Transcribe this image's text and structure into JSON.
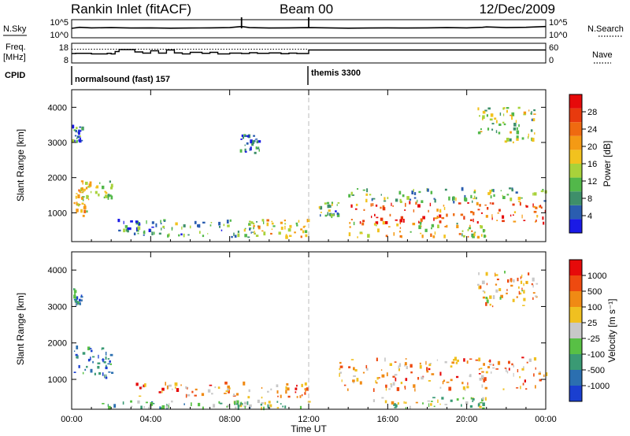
{
  "header": {
    "station": "Rankin Inlet (fitACF)",
    "beam": "Beam 00",
    "date": "12/Dec/2009"
  },
  "chart_data": [
    {
      "type": "line",
      "panel": "nsky-nsearch",
      "left_label": "N.Sky",
      "left_ticks": [
        "10^5",
        "10^0"
      ],
      "right_label": "N.Search",
      "right_ticks": [
        "10^5",
        "10^0"
      ],
      "series": [
        {
          "style": "solid",
          "x_hours": [
            0,
            0.4,
            1,
            2,
            3,
            4,
            5,
            6,
            7,
            8,
            8.6,
            9,
            10,
            11,
            12,
            13,
            14,
            15,
            16,
            17,
            18,
            19,
            20,
            20.8,
            21,
            22,
            23,
            24
          ],
          "y_norm": [
            0.52,
            0.58,
            0.55,
            0.56,
            0.54,
            0.55,
            0.53,
            0.54,
            0.55,
            0.56,
            0.62,
            0.56,
            0.54,
            0.55,
            0.56,
            0.55,
            0.53,
            0.54,
            0.55,
            0.54,
            0.55,
            0.56,
            0.55,
            0.58,
            0.6,
            0.56,
            0.58,
            0.62
          ]
        }
      ],
      "spikes_hours": [
        8.6,
        12.0
      ],
      "xlim": [
        0,
        24
      ]
    },
    {
      "type": "line",
      "panel": "freq-nave",
      "left_label": "Freq.",
      "left_unit": "[MHz]",
      "left_ticks": [
        "18",
        "8"
      ],
      "right_label": "Nave",
      "right_ticks": [
        "60",
        "0"
      ],
      "ylim_left": [
        8,
        18
      ],
      "series": [
        {
          "name_visible": false,
          "style": "solid",
          "step_x_hours": [
            0,
            0.2,
            1.0,
            1.8,
            2.0,
            2.2,
            2.4,
            3.2,
            3.6,
            4.0,
            4.4,
            4.8,
            5.2,
            5.6,
            6.0,
            6.6,
            7.0,
            7.4,
            8.0,
            8.6,
            9.0,
            9.4,
            10.0,
            10.6,
            11.0,
            11.4,
            12.0,
            24
          ],
          "step_freq_mhz": [
            12.8,
            12.9,
            12.6,
            12.9,
            12.6,
            13.8,
            14.8,
            13.6,
            13.0,
            14.2,
            13.0,
            14.6,
            13.1,
            12.6,
            13.4,
            12.9,
            13.4,
            12.6,
            13.0,
            12.8,
            13.2,
            12.9,
            13.1,
            12.7,
            13.0,
            12.8,
            14.6,
            14.6
          ]
        }
      ],
      "dotted_level_mhz": 15.0,
      "xlim": [
        0,
        24
      ]
    },
    {
      "type": "table",
      "panel": "cpid",
      "label": "CPID",
      "modes": [
        {
          "name": "normalsound (fast) 157",
          "start_hours": 0
        },
        {
          "name": "themis 3300",
          "start_hours": 12
        }
      ]
    },
    {
      "type": "heatmap",
      "panel": "power",
      "ylabel": "Slant Range [km]",
      "y_ticks": [
        1000,
        2000,
        3000,
        4000
      ],
      "ylim": [
        180,
        4500
      ],
      "xlim": [
        0,
        24
      ],
      "x_ticks": [
        "00:00",
        "04:00",
        "08:00",
        "12:00",
        "16:00",
        "20:00",
        "00:00"
      ],
      "x_tick_hours": [
        0,
        4,
        8,
        12,
        16,
        20,
        24
      ],
      "colorbar": {
        "label": "Power [dB]",
        "ticks": [
          "4",
          "8",
          "12",
          "16",
          "20",
          "24",
          "28"
        ],
        "colors": [
          "#1a1ae6",
          "#2a5db0",
          "#3e8f6a",
          "#52b84a",
          "#a8d23a",
          "#f2c21e",
          "#f49a14",
          "#ef6a10",
          "#e83a0e",
          "#e60a0a"
        ]
      },
      "echo_regions": [
        {
          "t0": 0.0,
          "t1": 0.9,
          "r0": 900,
          "r1": 1700,
          "level": 0.55
        },
        {
          "t0": 0.4,
          "t1": 2.0,
          "r0": 1300,
          "r1": 1900,
          "level": 0.5
        },
        {
          "t0": 0.0,
          "t1": 0.5,
          "r0": 3000,
          "r1": 3500,
          "level": 0.2
        },
        {
          "t0": 2.3,
          "t1": 4.5,
          "r0": 350,
          "r1": 800,
          "level": 0.2
        },
        {
          "t0": 4.5,
          "t1": 9.5,
          "r0": 300,
          "r1": 800,
          "level": 0.3
        },
        {
          "t0": 9.0,
          "t1": 12.0,
          "r0": 300,
          "r1": 800,
          "level": 0.55
        },
        {
          "t0": 12.5,
          "t1": 13.5,
          "r0": 900,
          "r1": 1300,
          "level": 0.3
        },
        {
          "t0": 14.0,
          "t1": 24.0,
          "r0": 700,
          "r1": 1300,
          "level": 0.8
        },
        {
          "t0": 14.0,
          "t1": 24.0,
          "r0": 1300,
          "r1": 1700,
          "level": 0.35
        },
        {
          "t0": 14.0,
          "t1": 21.0,
          "r0": 300,
          "r1": 700,
          "level": 0.5
        },
        {
          "t0": 20.5,
          "t1": 23.5,
          "r0": 3000,
          "r1": 4000,
          "level": 0.4
        },
        {
          "t0": 8.5,
          "t1": 9.5,
          "r0": 2700,
          "r1": 3200,
          "level": 0.15
        }
      ]
    },
    {
      "type": "heatmap",
      "panel": "velocity",
      "ylabel": "Slant Range [km]",
      "y_ticks": [
        1000,
        2000,
        3000,
        4000
      ],
      "ylim": [
        180,
        4500
      ],
      "xlim": [
        0,
        24
      ],
      "x_ticks": [
        "00:00",
        "04:00",
        "08:00",
        "12:00",
        "16:00",
        "20:00",
        "00:00"
      ],
      "x_tick_hours": [
        0,
        4,
        8,
        12,
        16,
        20,
        24
      ],
      "xlabel": "Time UT",
      "colorbar": {
        "label": "Velocity [m s⁻¹]",
        "ticks": [
          "1000",
          "500",
          "100",
          "25",
          "-25",
          "-100",
          "-500",
          "-1000"
        ],
        "colors": [
          "#1a3fd0",
          "#2b6fb0",
          "#3a9a74",
          "#58c045",
          "#c8c8c8",
          "#f0c020",
          "#f08a14",
          "#ee4a10",
          "#e60a0a"
        ]
      },
      "echo_regions": [
        {
          "t0": 0.0,
          "t1": 2.0,
          "r0": 1000,
          "r1": 1900,
          "level": 0.25
        },
        {
          "t0": 0.0,
          "t1": 0.5,
          "r0": 3000,
          "r1": 3500,
          "level": 0.3
        },
        {
          "t0": 1.5,
          "t1": 9.0,
          "r0": 200,
          "r1": 400,
          "level": 0.35
        },
        {
          "t0": 3.0,
          "t1": 12.0,
          "r0": 500,
          "r1": 900,
          "level": 0.7
        },
        {
          "t0": 8.0,
          "t1": 12.0,
          "r0": 200,
          "r1": 400,
          "level": 0.45
        },
        {
          "t0": 13.5,
          "t1": 24.0,
          "r0": 700,
          "r1": 1600,
          "level": 0.7
        },
        {
          "t0": 15.0,
          "t1": 21.0,
          "r0": 200,
          "r1": 500,
          "level": 0.48
        },
        {
          "t0": 20.5,
          "t1": 23.5,
          "r0": 3000,
          "r1": 4000,
          "level": 0.65
        }
      ]
    }
  ]
}
